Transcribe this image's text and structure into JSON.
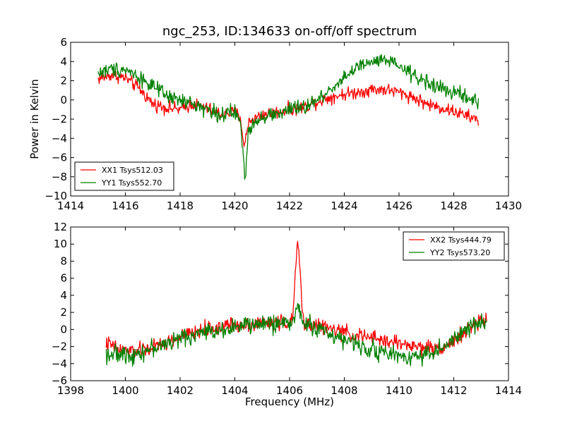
{
  "figure": {
    "title": "ngc_253, ID:134633 on-off/off spectrum",
    "ylabel": "Power in Kelvin",
    "xlabel": "Frequency (MHz)"
  },
  "colors": {
    "XX": "#ff0000",
    "YY": "#008000"
  },
  "chart_data": [
    {
      "type": "line",
      "title": "ngc_253, ID:134633 on-off/off spectrum",
      "xlabel": "",
      "ylabel": "Power in Kelvin",
      "xlim": [
        1414,
        1430
      ],
      "ylim": [
        -10,
        6
      ],
      "xticks": [
        1414,
        1416,
        1418,
        1420,
        1422,
        1424,
        1426,
        1428,
        1430
      ],
      "yticks": [
        -10,
        -8,
        -6,
        -4,
        -2,
        0,
        2,
        4,
        6
      ],
      "grid": false,
      "legend_position": "lower-left",
      "series": [
        {
          "name": "XX1 Tsys512.03",
          "color": "#ff0000",
          "x": [
            1415.0,
            1415.5,
            1416.0,
            1416.5,
            1417.0,
            1417.5,
            1418.0,
            1418.5,
            1419.0,
            1419.5,
            1420.0,
            1420.2,
            1420.35,
            1420.5,
            1420.75,
            1421.0,
            1421.5,
            1422.0,
            1422.5,
            1423.0,
            1423.5,
            1424.0,
            1424.5,
            1425.0,
            1425.5,
            1426.0,
            1426.5,
            1427.0,
            1427.5,
            1428.0,
            1428.5,
            1428.9
          ],
          "y": [
            2.2,
            2.6,
            2.3,
            1.2,
            -0.4,
            -0.8,
            -1.0,
            -0.4,
            -0.9,
            -1.5,
            -1.3,
            -1.8,
            -5.0,
            -2.2,
            -1.9,
            -1.5,
            -1.3,
            -1.0,
            -0.8,
            -0.2,
            0.3,
            0.6,
            0.8,
            1.1,
            1.1,
            0.8,
            0.3,
            -0.4,
            -0.8,
            -1.2,
            -1.7,
            -2.1
          ]
        },
        {
          "name": "YY1 Tsys552.70",
          "color": "#008000",
          "x": [
            1415.0,
            1415.5,
            1416.0,
            1416.5,
            1417.0,
            1417.5,
            1418.0,
            1418.5,
            1419.0,
            1419.5,
            1420.0,
            1420.2,
            1420.38,
            1420.5,
            1420.75,
            1421.0,
            1421.5,
            1422.0,
            1422.5,
            1423.0,
            1423.5,
            1424.0,
            1424.5,
            1425.0,
            1425.5,
            1426.0,
            1426.5,
            1427.0,
            1427.5,
            1428.0,
            1428.5,
            1428.9
          ],
          "y": [
            2.8,
            3.2,
            3.2,
            2.4,
            1.4,
            0.4,
            -0.1,
            -0.4,
            -1.0,
            -1.6,
            -1.3,
            -2.2,
            -8.5,
            -3.0,
            -2.2,
            -1.7,
            -1.5,
            -1.0,
            -0.8,
            -0.1,
            1.1,
            2.4,
            3.4,
            3.9,
            4.1,
            3.5,
            2.6,
            1.9,
            1.2,
            0.8,
            0.2,
            -0.3
          ]
        }
      ]
    },
    {
      "type": "line",
      "title": "",
      "xlabel": "Frequency (MHz)",
      "ylabel": "",
      "xlim": [
        1398,
        1414
      ],
      "ylim": [
        -6,
        12
      ],
      "xticks": [
        1398,
        1400,
        1402,
        1404,
        1406,
        1408,
        1410,
        1412,
        1414
      ],
      "yticks": [
        -6,
        -4,
        -2,
        0,
        2,
        4,
        6,
        8,
        10,
        12
      ],
      "grid": false,
      "legend_position": "top-right",
      "series": [
        {
          "name": "XX2 Tsys444.79",
          "color": "#ff0000",
          "x": [
            1399.3,
            1399.8,
            1400.3,
            1400.8,
            1401.3,
            1401.8,
            1402.3,
            1402.8,
            1403.3,
            1403.8,
            1404.3,
            1404.8,
            1405.3,
            1405.8,
            1406.1,
            1406.3,
            1406.5,
            1406.8,
            1407.3,
            1407.8,
            1408.3,
            1408.8,
            1409.3,
            1409.8,
            1410.3,
            1410.8,
            1411.3,
            1411.8,
            1412.3,
            1412.8,
            1413.2
          ],
          "y": [
            -1.6,
            -2.4,
            -2.6,
            -2.3,
            -1.8,
            -1.2,
            -0.6,
            -0.1,
            0.2,
            0.5,
            0.6,
            0.7,
            0.8,
            0.9,
            0.8,
            10.7,
            0.8,
            0.6,
            0.2,
            -0.2,
            -0.6,
            -0.9,
            -1.2,
            -1.5,
            -1.8,
            -2.1,
            -2.2,
            -1.8,
            -0.6,
            0.6,
            1.4
          ]
        },
        {
          "name": "YY2 Tsys573.20",
          "color": "#008000",
          "x": [
            1399.3,
            1399.8,
            1400.3,
            1400.8,
            1401.3,
            1401.8,
            1402.3,
            1402.8,
            1403.3,
            1403.8,
            1404.3,
            1404.8,
            1405.3,
            1405.8,
            1406.1,
            1406.3,
            1406.5,
            1406.8,
            1407.3,
            1407.8,
            1408.3,
            1408.8,
            1409.3,
            1409.8,
            1410.3,
            1410.8,
            1411.3,
            1411.8,
            1412.3,
            1412.8,
            1413.2
          ],
          "y": [
            -2.8,
            -3.0,
            -2.9,
            -2.4,
            -1.9,
            -1.3,
            -0.8,
            -0.4,
            -0.1,
            0.2,
            0.4,
            0.6,
            0.7,
            0.8,
            0.7,
            3.0,
            0.7,
            0.4,
            -0.2,
            -1.0,
            -1.6,
            -2.1,
            -2.6,
            -3.0,
            -3.2,
            -3.0,
            -2.6,
            -1.8,
            -0.4,
            0.6,
            1.0
          ]
        }
      ]
    }
  ]
}
